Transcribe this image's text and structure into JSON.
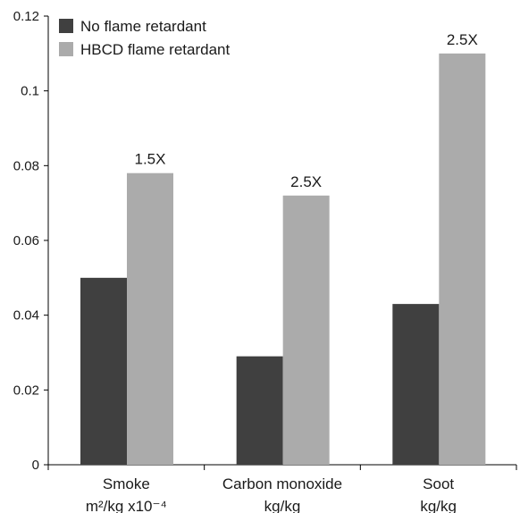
{
  "chart_data": {
    "type": "bar",
    "categories": [
      [
        "Smoke",
        "m²/kg x10⁻⁴"
      ],
      [
        "Carbon monoxide",
        "kg/kg"
      ],
      [
        "Soot",
        "kg/kg"
      ]
    ],
    "series": [
      {
        "name": "No flame retardant",
        "values": [
          0.05,
          0.029,
          0.043
        ],
        "color": "#404040"
      },
      {
        "name": "HBCD flame retardant",
        "values": [
          0.078,
          0.072,
          0.11
        ],
        "color": "#ababab"
      }
    ],
    "annotations": [
      "1.5X",
      "2.5X",
      "2.5X"
    ],
    "ylim": [
      0,
      0.12
    ],
    "yticks": [
      "0",
      "0.02",
      "0.04",
      "0.06",
      "0.08",
      "0.1",
      "0.12"
    ],
    "grid": false,
    "legend_position": "top-left"
  }
}
